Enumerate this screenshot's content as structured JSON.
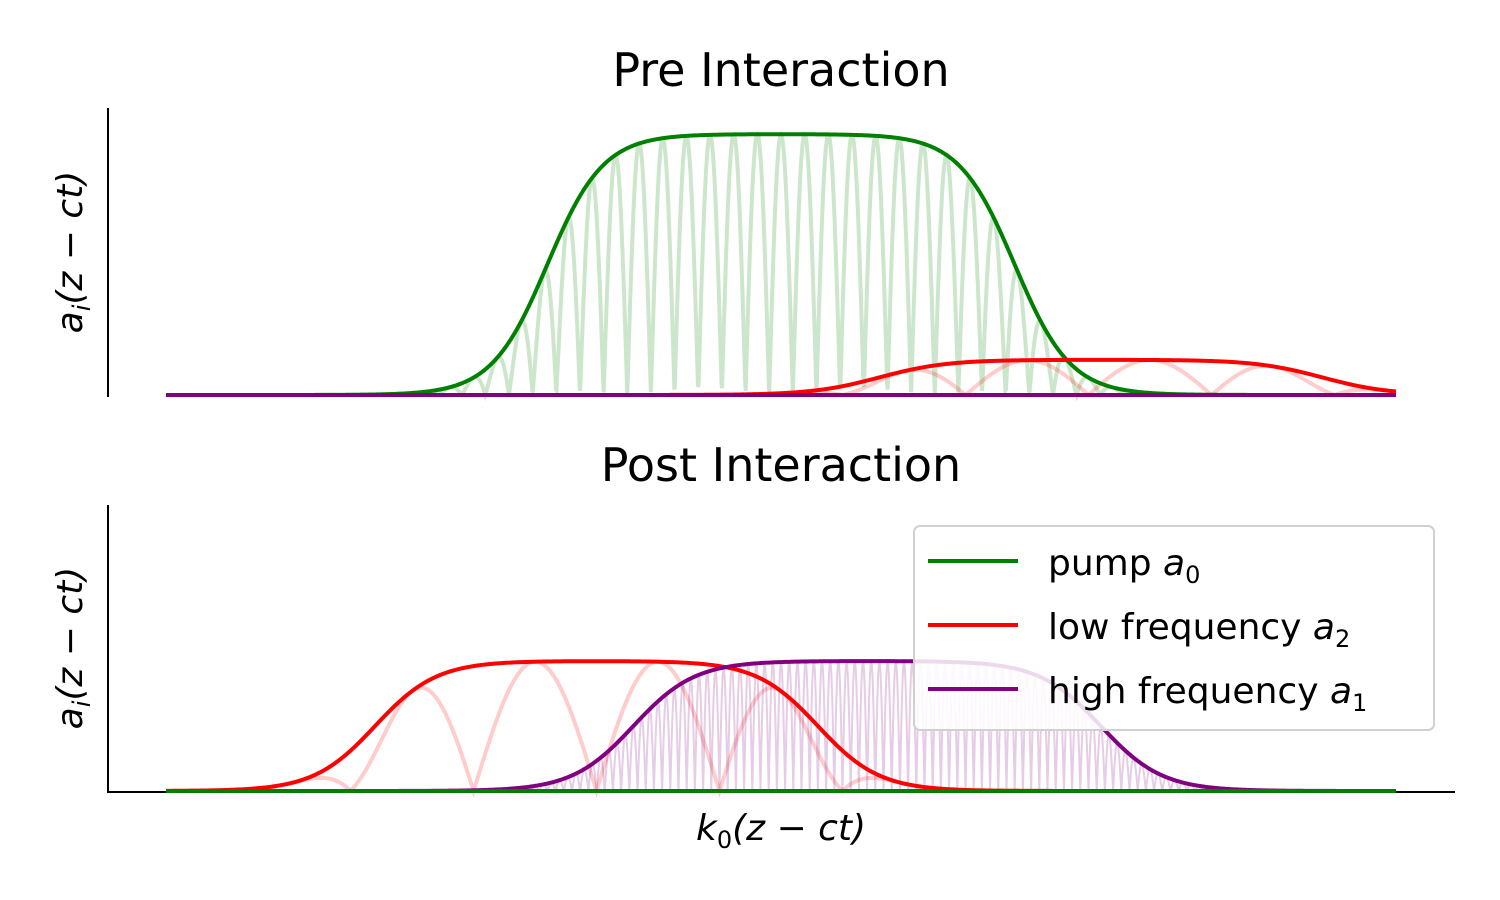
{
  "chart_data": [
    {
      "type": "line",
      "title": "Pre Interaction",
      "xlabel": "",
      "ylabel": "a_i(z − ct)",
      "ylabel_parts": {
        "base": "a",
        "sub": "i",
        "rest": "(z − ct)"
      },
      "xlim": [
        0,
        1
      ],
      "ylim": [
        0,
        1.1
      ],
      "grid": false,
      "series": [
        {
          "name": "pump a0",
          "color": "#008000",
          "envelope": {
            "center": 0.5,
            "half_width": 0.19,
            "edge": 0.05,
            "amplitude": 1.0
          },
          "carrier_cycles": 52
        },
        {
          "name": "low frequency a2",
          "color": "#ff0000",
          "envelope": {
            "center": 0.76,
            "half_width": 0.18,
            "edge": 0.06,
            "amplitude": 0.135
          },
          "carrier_cycles": 10
        },
        {
          "name": "high frequency a1",
          "color": "#800080",
          "envelope": {
            "center": 0.5,
            "half_width": 0.2,
            "edge": 0.05,
            "amplitude": 0.0
          },
          "carrier_cycles": 150
        }
      ]
    },
    {
      "type": "line",
      "title": "Post Interaction",
      "xlabel": "k0(z − ct)",
      "xlabel_parts": {
        "base": "k",
        "sub": "0",
        "rest": "(z − ct)"
      },
      "ylabel": "a_i(z − ct)",
      "ylabel_parts": {
        "base": "a",
        "sub": "i",
        "rest": "(z − ct)"
      },
      "xlim": [
        0,
        1
      ],
      "ylim": [
        0,
        1.1
      ],
      "grid": false,
      "series": [
        {
          "name": "pump a0",
          "color": "#008000",
          "envelope": {
            "center": 0.5,
            "half_width": 0.2,
            "edge": 0.05,
            "amplitude": 0.0
          },
          "carrier_cycles": 52
        },
        {
          "name": "low frequency a2",
          "color": "#ff0000",
          "envelope": {
            "center": 0.35,
            "half_width": 0.18,
            "edge": 0.055,
            "amplitude": 0.5
          },
          "carrier_cycles": 10
        },
        {
          "name": "high frequency a1",
          "color": "#800080",
          "envelope": {
            "center": 0.57,
            "half_width": 0.19,
            "edge": 0.055,
            "amplitude": 0.5
          },
          "carrier_cycles": 150
        }
      ],
      "legend": {
        "placement": "upper-right",
        "entries": [
          {
            "label": "pump ",
            "sym": "a",
            "sub": "0",
            "color": "#008000"
          },
          {
            "label": "low frequency ",
            "sym": "a",
            "sub": "2",
            "color": "#ff0000"
          },
          {
            "label": "high frequency ",
            "sym": "a",
            "sub": "1",
            "color": "#800080"
          }
        ]
      }
    }
  ]
}
